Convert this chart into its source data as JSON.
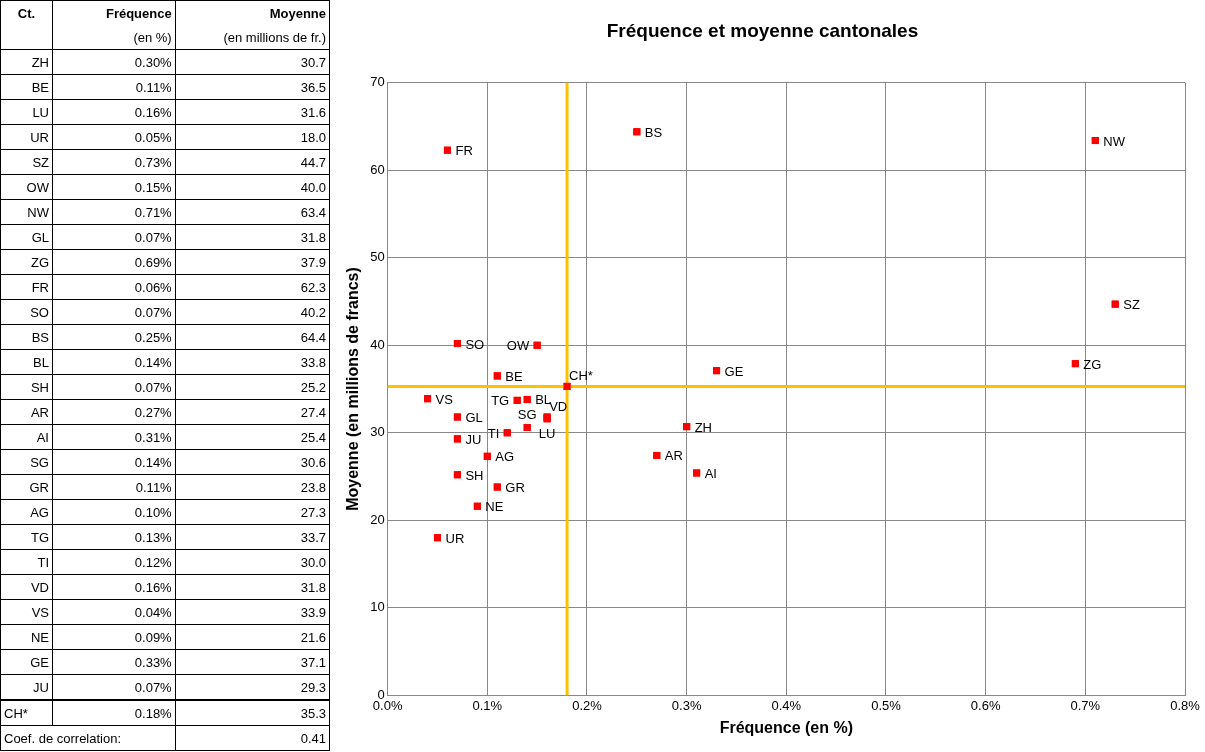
{
  "chart_data": [
    {
      "type": "other",
      "annotations": [
        "Ct.",
        "Fréquence",
        "Moyenne",
        "(en %)",
        "(en millions de fr.)",
        "ZH",
        "0.30%",
        "30.7",
        "BE",
        "0.11%",
        "36.5",
        "LU",
        "0.16%",
        "31.6",
        "UR",
        "0.05%",
        "18.0",
        "SZ",
        "0.73%",
        "44.7",
        "OW",
        "0.15%",
        "40.0",
        "NW",
        "0.71%",
        "63.4",
        "GL",
        "0.07%",
        "31.8",
        "ZG",
        "0.69%",
        "37.9",
        "FR",
        "0.06%",
        "62.3",
        "SO",
        "0.07%",
        "40.2",
        "BS",
        "0.25%",
        "64.4",
        "BL",
        "0.14%",
        "33.8",
        "SH",
        "0.07%",
        "25.2",
        "AR",
        "0.27%",
        "27.4",
        "AI",
        "0.31%",
        "25.4",
        "SG",
        "0.14%",
        "30.6",
        "GR",
        "0.11%",
        "23.8",
        "AG",
        "0.10%",
        "27.3",
        "TG",
        "0.13%",
        "33.7",
        "TI",
        "0.12%",
        "30.0",
        "VD",
        "0.16%",
        "31.8",
        "VS",
        "0.04%",
        "33.9",
        "NE",
        "0.09%",
        "21.6",
        "GE",
        "0.33%",
        "37.1",
        "JU",
        "0.07%",
        "29.3",
        "CH*",
        "0.18%",
        "35.3",
        "Coef. de correlation:",
        "0.41"
      ]
    },
    {
      "type": "scatter",
      "title": "Fréquence et moyenne cantonales",
      "xlabel": "Fréquence (en %)",
      "ylabel": "Moyenne (en millions de francs)",
      "marker": "square",
      "series": [
        {
          "name": "ZH",
          "color": "#ff0000",
          "x": [
            0.3
          ],
          "values": [
            30.7
          ]
        },
        {
          "name": "BE",
          "color": "#ff0000",
          "x": [
            0.11
          ],
          "values": [
            36.5
          ]
        },
        {
          "name": "LU",
          "color": "#ff0000",
          "x": [
            0.16
          ],
          "values": [
            31.6
          ]
        },
        {
          "name": "UR",
          "color": "#ff0000",
          "x": [
            0.05
          ],
          "values": [
            18.0
          ]
        },
        {
          "name": "SZ",
          "color": "#ff0000",
          "x": [
            0.73
          ],
          "values": [
            44.7
          ]
        },
        {
          "name": "OW",
          "color": "#ff0000",
          "x": [
            0.15
          ],
          "values": [
            40.0
          ]
        },
        {
          "name": "NW",
          "color": "#ff0000",
          "x": [
            0.71
          ],
          "values": [
            63.4
          ]
        },
        {
          "name": "GL",
          "color": "#ff0000",
          "x": [
            0.07
          ],
          "values": [
            31.8
          ]
        },
        {
          "name": "ZG",
          "color": "#ff0000",
          "x": [
            0.69
          ],
          "values": [
            37.9
          ]
        },
        {
          "name": "FR",
          "color": "#ff0000",
          "x": [
            0.06
          ],
          "values": [
            62.3
          ]
        },
        {
          "name": "SO",
          "color": "#ff0000",
          "x": [
            0.07
          ],
          "values": [
            40.2
          ]
        },
        {
          "name": "BS",
          "color": "#ff0000",
          "x": [
            0.25
          ],
          "values": [
            64.4
          ]
        },
        {
          "name": "BL",
          "color": "#ff0000",
          "x": [
            0.14
          ],
          "values": [
            33.8
          ]
        },
        {
          "name": "SH",
          "color": "#ff0000",
          "x": [
            0.07
          ],
          "values": [
            25.2
          ]
        },
        {
          "name": "AR",
          "color": "#ff0000",
          "x": [
            0.27
          ],
          "values": [
            27.4
          ]
        },
        {
          "name": "AI",
          "color": "#ff0000",
          "x": [
            0.31
          ],
          "values": [
            25.4
          ]
        },
        {
          "name": "SG",
          "color": "#ff0000",
          "x": [
            0.14
          ],
          "values": [
            30.6
          ]
        },
        {
          "name": "GR",
          "color": "#ff0000",
          "x": [
            0.11
          ],
          "values": [
            23.8
          ]
        },
        {
          "name": "AG",
          "color": "#ff0000",
          "x": [
            0.1
          ],
          "values": [
            27.3
          ]
        },
        {
          "name": "TG",
          "color": "#ff0000",
          "x": [
            0.13
          ],
          "values": [
            33.7
          ]
        },
        {
          "name": "TI",
          "color": "#ff0000",
          "x": [
            0.12
          ],
          "values": [
            30.0
          ]
        },
        {
          "name": "VD",
          "color": "#ff0000",
          "x": [
            0.16
          ],
          "values": [
            31.8
          ]
        },
        {
          "name": "VS",
          "color": "#ff0000",
          "x": [
            0.04
          ],
          "values": [
            33.9
          ]
        },
        {
          "name": "NE",
          "color": "#ff0000",
          "x": [
            0.09
          ],
          "values": [
            21.6
          ]
        },
        {
          "name": "GE",
          "color": "#ff0000",
          "x": [
            0.33
          ],
          "values": [
            37.1
          ]
        },
        {
          "name": "JU",
          "color": "#ff0000",
          "x": [
            0.07
          ],
          "values": [
            29.3
          ]
        },
        {
          "name": "CH*",
          "color": "#ff0000",
          "x": [
            0.18
          ],
          "values": [
            35.3
          ]
        }
      ],
      "xlim": [
        0,
        0.8
      ],
      "xticks": [
        {
          "value": 0,
          "label": "0.0%"
        },
        {
          "value": 0.1,
          "label": "0.1%"
        },
        {
          "value": 0.2,
          "label": "0.2%"
        },
        {
          "value": 0.3,
          "label": "0.3%"
        },
        {
          "value": 0.4,
          "label": "0.4%"
        },
        {
          "value": 0.5,
          "label": "0.5%"
        },
        {
          "value": 0.6,
          "label": "0.6%"
        },
        {
          "value": 0.7,
          "label": "0.7%"
        },
        {
          "value": 0.8,
          "label": "0.8%"
        }
      ],
      "ylim": [
        0,
        70
      ],
      "yticks": [
        0,
        10,
        20,
        30,
        40,
        50,
        60,
        70
      ],
      "grid": true,
      "ref_lines": [
        {
          "axis": "x",
          "value": 0.18,
          "color": "#ffc000"
        },
        {
          "axis": "y",
          "value": 35.3,
          "color": "#ffc000"
        }
      ]
    }
  ]
}
